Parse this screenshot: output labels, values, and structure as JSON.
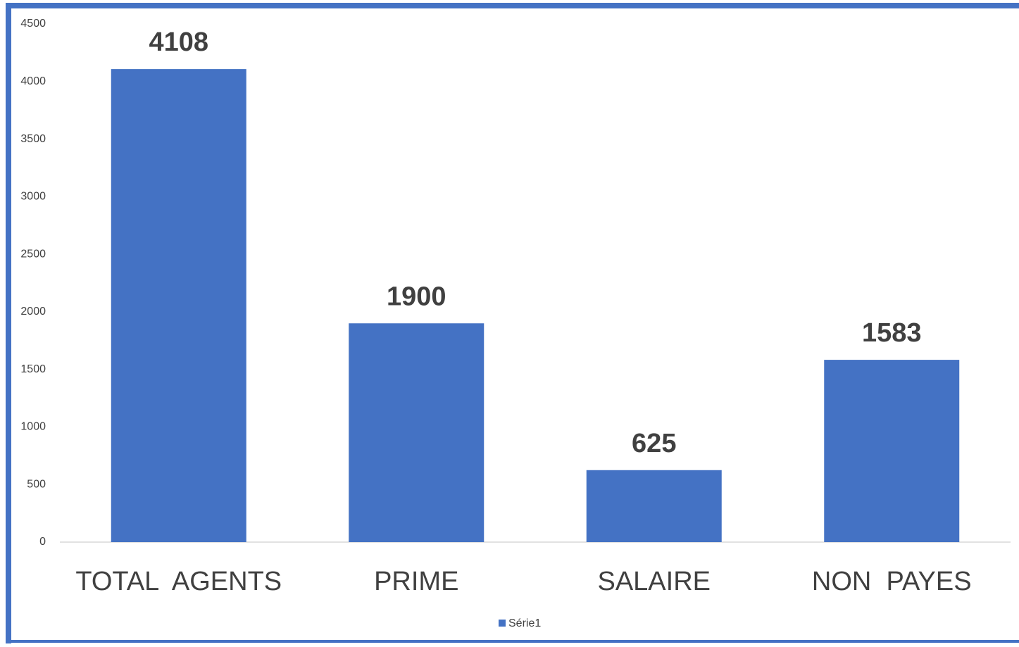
{
  "chart_data": {
    "type": "bar",
    "categories": [
      "TOTAL  AGENTS",
      "PRIME",
      "SALAIRE",
      "NON  PAYES"
    ],
    "series": [
      {
        "name": "Série1",
        "color": "#4472c4",
        "values": [
          4108,
          1900,
          625,
          1583
        ]
      }
    ],
    "ylim": [
      0,
      4500
    ],
    "yticks": [
      0,
      500,
      1000,
      1500,
      2000,
      2500,
      3000,
      3500,
      4000,
      4500
    ],
    "grid": false,
    "legend": "bottom"
  }
}
